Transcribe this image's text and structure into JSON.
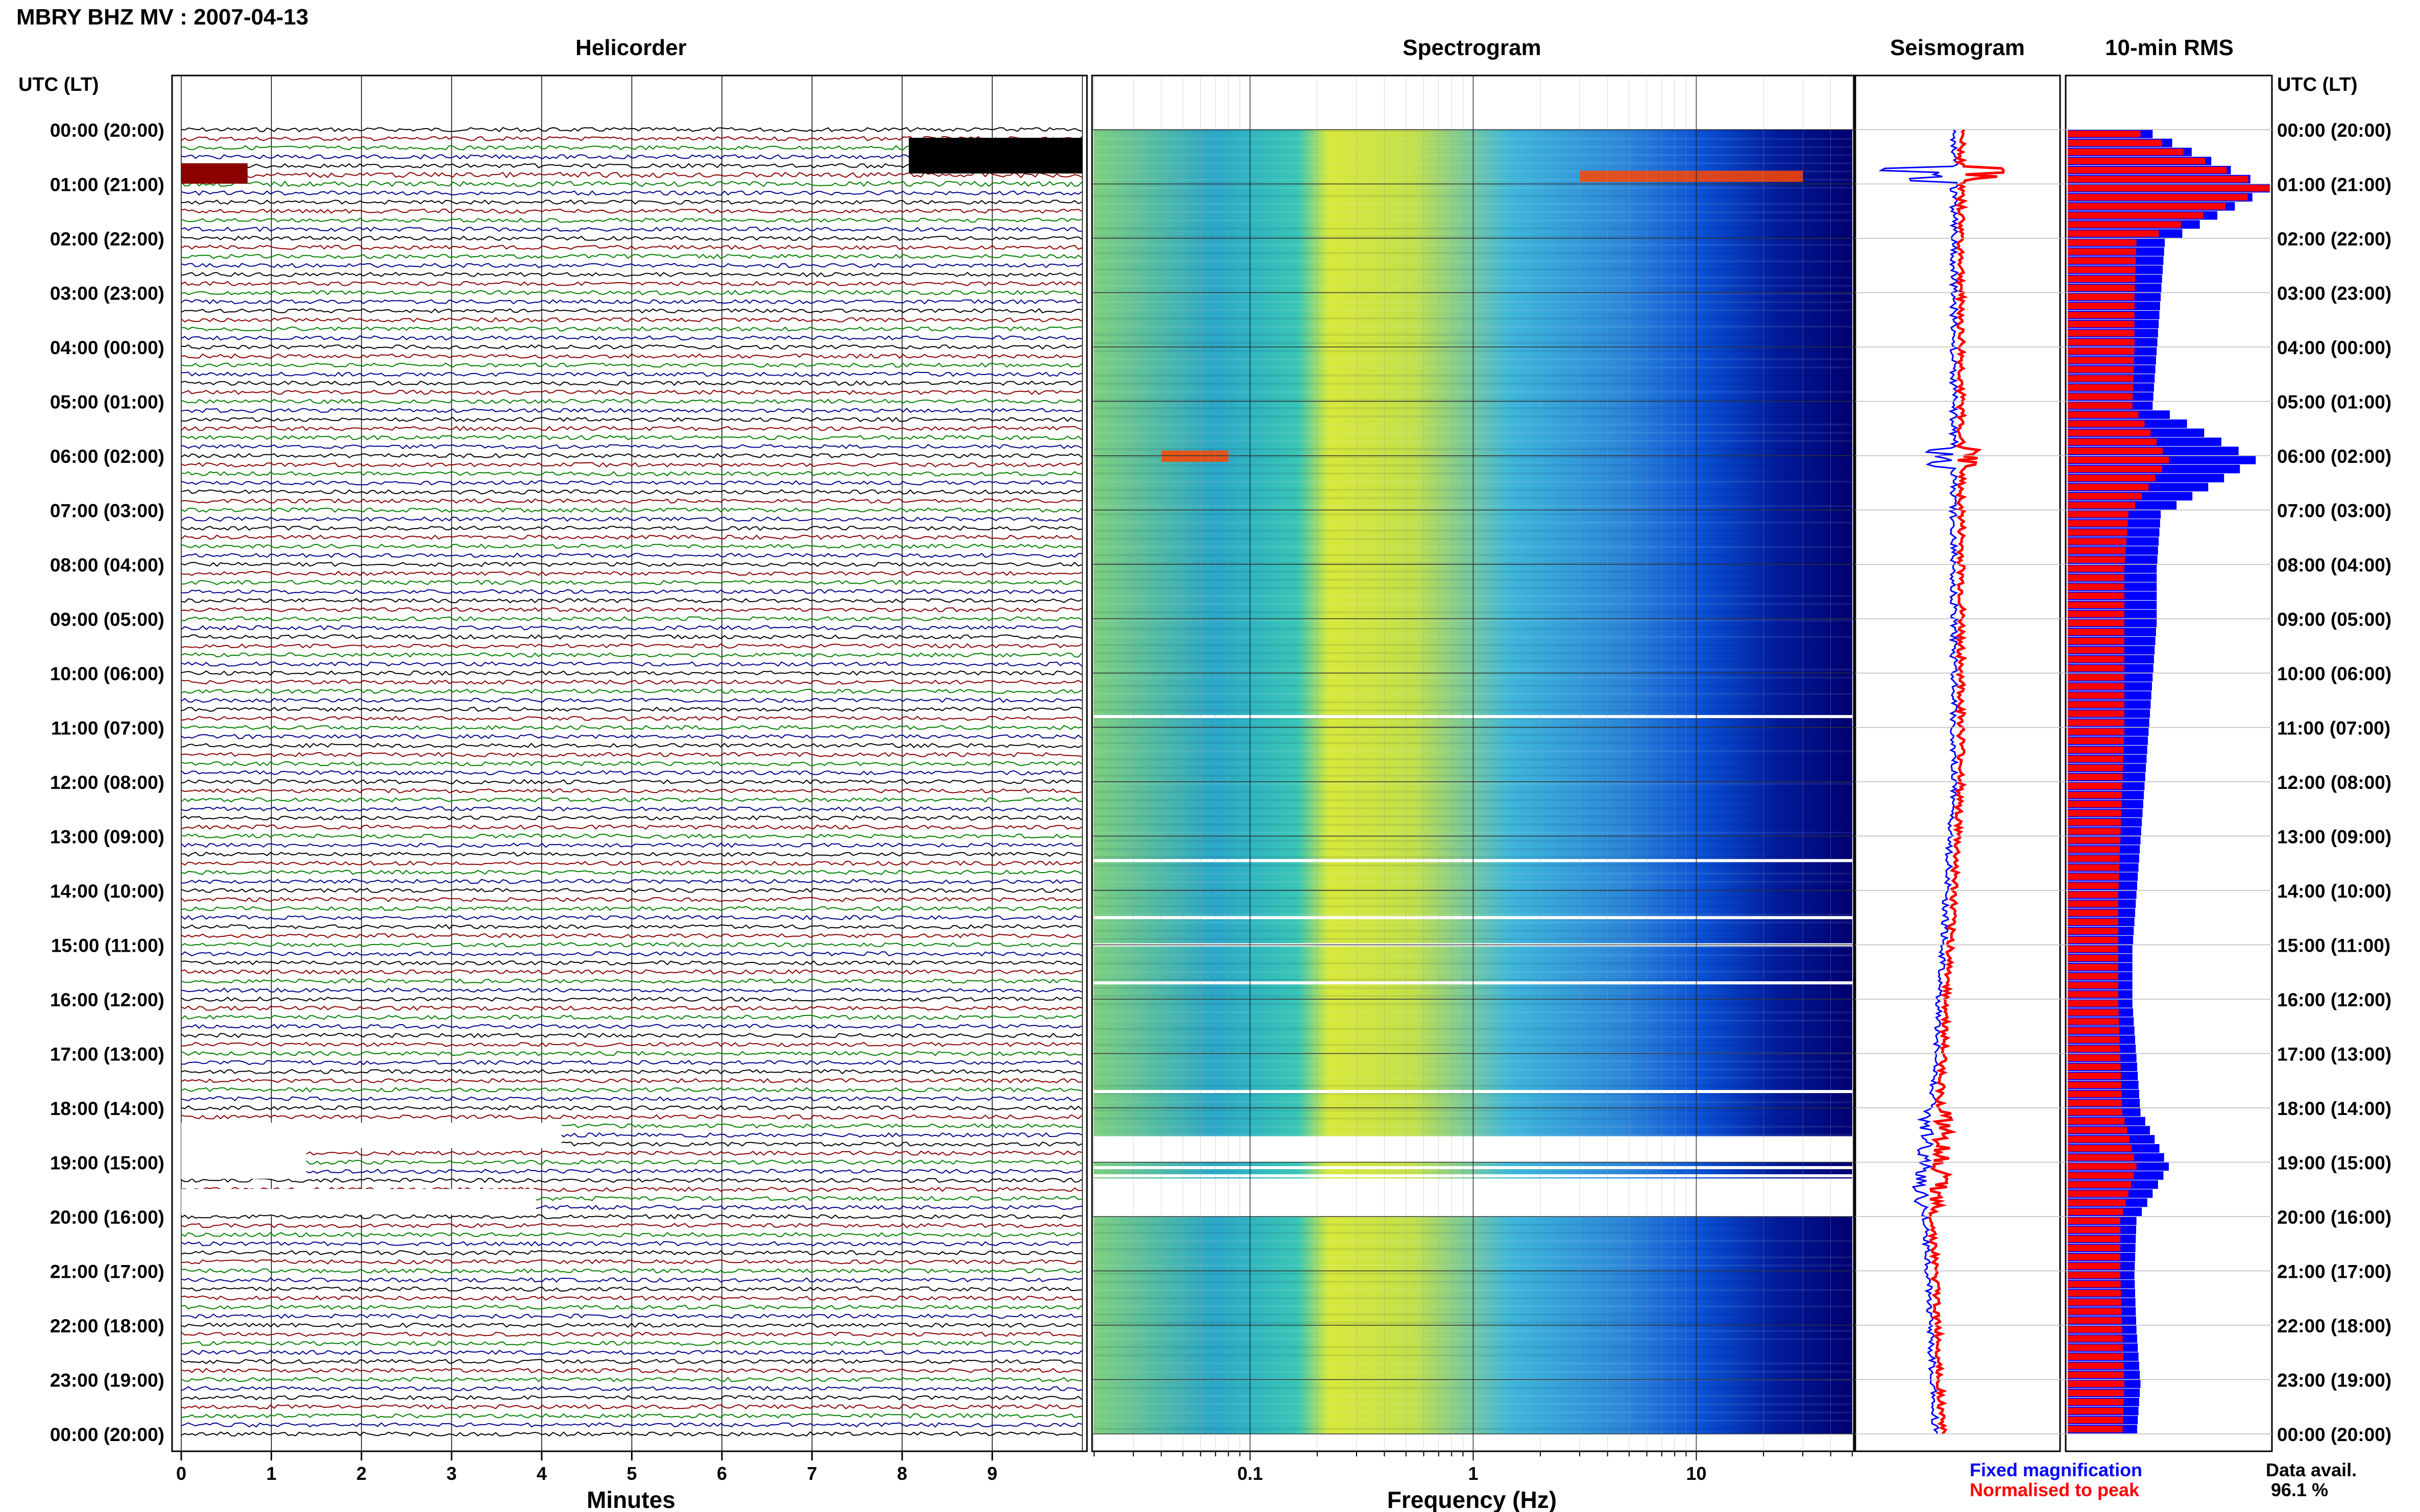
{
  "header": {
    "title": "MBRY BHZ MV : 2007-04-13"
  },
  "panels": {
    "helicorder": "Helicorder",
    "spectrogram": "Spectrogram",
    "seismogram": "Seismogram",
    "rms": "10-min RMS"
  },
  "axes": {
    "left_header": "UTC (LT)",
    "right_header": "UTC (LT)",
    "time_labels": [
      "00:00 (20:00)",
      "01:00 (21:00)",
      "02:00 (22:00)",
      "03:00 (23:00)",
      "04:00 (00:00)",
      "05:00 (01:00)",
      "06:00 (02:00)",
      "07:00 (03:00)",
      "08:00 (04:00)",
      "09:00 (05:00)",
      "10:00 (06:00)",
      "11:00 (07:00)",
      "12:00 (08:00)",
      "13:00 (09:00)",
      "14:00 (10:00)",
      "15:00 (11:00)",
      "16:00 (12:00)",
      "17:00 (13:00)",
      "18:00 (14:00)",
      "19:00 (15:00)",
      "20:00 (16:00)",
      "21:00 (17:00)",
      "22:00 (18:00)",
      "23:00 (19:00)",
      "00:00 (20:00)"
    ],
    "minutes_label": "Minutes",
    "minutes_ticks": [
      "0",
      "1",
      "2",
      "3",
      "4",
      "5",
      "6",
      "7",
      "8",
      "9"
    ],
    "frequency_label": "Frequency (Hz)",
    "frequency_ticks": [
      "0.1",
      "1",
      "10"
    ]
  },
  "legend": {
    "fixed": "Fixed magnification",
    "normalised": "Normalised to peak",
    "fixed_color": "#0000ff",
    "normalised_color": "#ff0000"
  },
  "availability": {
    "label": "Data avail.",
    "value": "96.1 %"
  },
  "colors": {
    "trace_cycle": [
      "#000000",
      "#8b0000",
      "#008000",
      "#00008b"
    ],
    "spectrogram_low": "#00008b",
    "spectrogram_mid": "#00bfff",
    "spectrogram_high": "#ffff00",
    "spectrogram_peak": "#ff4500"
  },
  "chart_data": {
    "type": "heatmap",
    "title": "MBRY BHZ MV : 2007-04-13",
    "data_availability_percent": 96.1,
    "helicorder": {
      "xlabel": "Minutes",
      "xlim": [
        0,
        10
      ],
      "hours": 24,
      "traces_per_hour": 6
    },
    "spectrogram": {
      "xlabel": "Frequency (Hz)",
      "xscale": "log",
      "xlim": [
        0.02,
        50
      ],
      "gaps_utc_hours": [
        10.8,
        13.45,
        14.5,
        15.0,
        15.7,
        17.7,
        18.55,
        18.95,
        19.1,
        19.25,
        19.4,
        19.55,
        19.7,
        19.85
      ],
      "events": [
        {
          "utc_hour": 0.85,
          "freq_low": 3,
          "freq_high": 30
        },
        {
          "utc_hour": 6.0,
          "freq_low": 0.04,
          "freq_high": 0.08
        }
      ]
    },
    "rms": {
      "title": "10-min RMS",
      "hours": [
        0,
        1,
        2,
        3,
        4,
        5,
        6,
        7,
        8,
        9,
        10,
        11,
        12,
        13,
        14,
        15,
        16,
        17,
        18,
        19,
        20,
        21,
        22,
        23,
        24
      ],
      "fixed_magnification": [
        0.42,
        1.0,
        0.48,
        0.46,
        0.44,
        0.42,
        0.93,
        0.46,
        0.44,
        0.44,
        0.42,
        0.4,
        0.38,
        0.36,
        0.34,
        0.32,
        0.32,
        0.34,
        0.36,
        0.5,
        0.34,
        0.33,
        0.34,
        0.36,
        0.34
      ],
      "normalised_to_peak": [
        0.36,
        1.0,
        0.34,
        0.33,
        0.33,
        0.32,
        0.5,
        0.3,
        0.28,
        0.28,
        0.28,
        0.28,
        0.27,
        0.26,
        0.25,
        0.25,
        0.25,
        0.26,
        0.27,
        0.34,
        0.26,
        0.26,
        0.27,
        0.28,
        0.27
      ]
    }
  }
}
